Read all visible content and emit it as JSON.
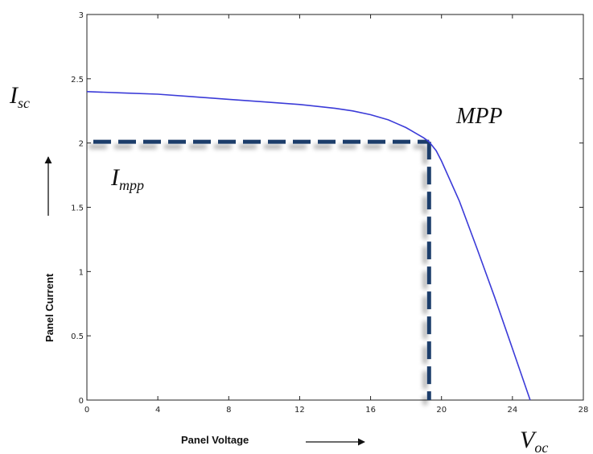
{
  "chart_data": {
    "type": "line",
    "xlabel": "Panel Voltage",
    "ylabel": "Panel Current",
    "xlim": [
      0,
      28
    ],
    "ylim": [
      0,
      3
    ],
    "xticks": [
      0,
      4,
      8,
      12,
      16,
      20,
      24,
      28
    ],
    "yticks": [
      0,
      0.5,
      1,
      1.5,
      2,
      2.5,
      3
    ],
    "grid": false,
    "series": [
      {
        "color": "#3b3bd8",
        "x": [
          0,
          2,
          4,
          6,
          8,
          10,
          12,
          14,
          15,
          16,
          17,
          17.5,
          18,
          18.5,
          19,
          19.3,
          19.7,
          20,
          21,
          22,
          23,
          24,
          25
        ],
        "y": [
          2.4,
          2.39,
          2.38,
          2.36,
          2.34,
          2.32,
          2.3,
          2.27,
          2.25,
          2.22,
          2.18,
          2.15,
          2.12,
          2.08,
          2.04,
          2.01,
          1.94,
          1.86,
          1.55,
          1.18,
          0.8,
          0.4,
          0
        ]
      }
    ],
    "mpp": {
      "x": 19.3,
      "y": 2.01,
      "label": "MPP",
      "line_color": "#1f3d6b"
    },
    "annotations": {
      "isc": {
        "main": "I",
        "sub": "sc"
      },
      "impp": {
        "main": "I",
        "sub": "mpp"
      },
      "voc": {
        "main": "V",
        "sub": "oc"
      }
    }
  }
}
